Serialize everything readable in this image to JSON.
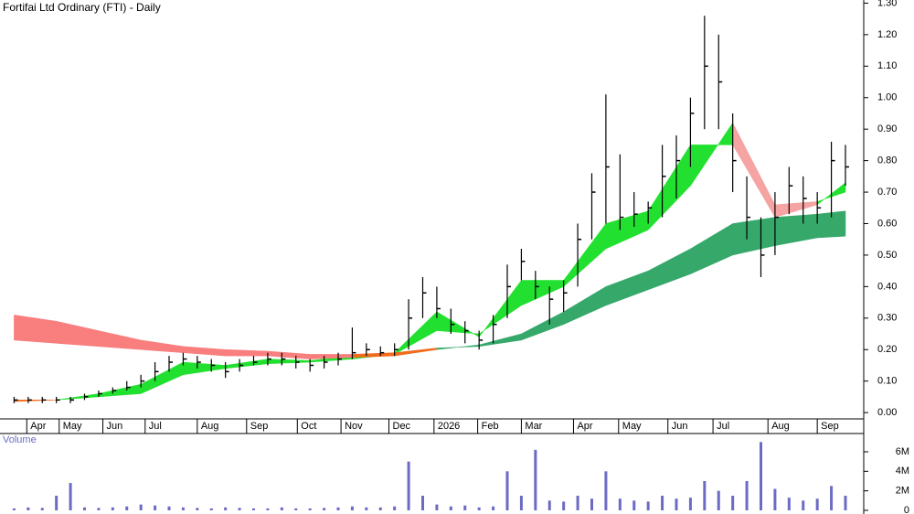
{
  "chart_data": {
    "type": "stock",
    "title": "Fortifai Ltd Ordinary (FTI) - Daily",
    "x": [
      1,
      2,
      3,
      4,
      5,
      6,
      7,
      8,
      9,
      10,
      11,
      12,
      13,
      14,
      15,
      16,
      17,
      18,
      19,
      20,
      21,
      22,
      23,
      24,
      25,
      26,
      27,
      28,
      29,
      30,
      31,
      32,
      33,
      34,
      35,
      36,
      37,
      38,
      39,
      40,
      41,
      42,
      43,
      44,
      45,
      46,
      47,
      48,
      49,
      50,
      51,
      52,
      53,
      54,
      55,
      56,
      57,
      58,
      59,
      60
    ],
    "xlim": [
      0,
      60
    ],
    "xticks": [
      {
        "value": 1.9,
        "label": "Apr"
      },
      {
        "value": 4.2,
        "label": "May"
      },
      {
        "value": 7.3,
        "label": "Jun"
      },
      {
        "value": 10.3,
        "label": "Jul"
      },
      {
        "value": 14,
        "label": "Aug"
      },
      {
        "value": 17.5,
        "label": "Sep"
      },
      {
        "value": 21.1,
        "label": "Oct"
      },
      {
        "value": 24.2,
        "label": "Nov"
      },
      {
        "value": 27.6,
        "label": "Dec"
      },
      {
        "value": 30.8,
        "label": "2026"
      },
      {
        "value": 33.9,
        "label": "Feb"
      },
      {
        "value": 37,
        "label": "Mar"
      },
      {
        "value": 40.7,
        "label": "Apr"
      },
      {
        "value": 43.9,
        "label": "May"
      },
      {
        "value": 47.4,
        "label": "Jun"
      },
      {
        "value": 50.6,
        "label": "Jul"
      },
      {
        "value": 54.5,
        "label": "Aug"
      },
      {
        "value": 58,
        "label": "Sep"
      }
    ],
    "close": [
      0.04,
      0.04,
      0.04,
      0.04,
      0.04,
      0.05,
      0.06,
      0.07,
      0.08,
      0.1,
      0.13,
      0.16,
      0.17,
      0.16,
      0.15,
      0.13,
      0.15,
      0.16,
      0.17,
      0.17,
      0.16,
      0.15,
      0.16,
      0.17,
      0.19,
      0.2,
      0.19,
      0.2,
      0.3,
      0.38,
      0.33,
      0.28,
      0.26,
      0.23,
      0.28,
      0.4,
      0.48,
      0.4,
      0.36,
      0.38,
      0.55,
      0.7,
      0.78,
      0.62,
      0.63,
      0.65,
      0.75,
      0.8,
      0.95,
      1.1,
      1.05,
      0.8,
      0.62,
      0.5,
      0.62,
      0.72,
      0.68,
      0.65,
      0.8,
      0.78
    ],
    "high": [
      0.05,
      0.05,
      0.05,
      0.05,
      0.05,
      0.06,
      0.07,
      0.08,
      0.1,
      0.12,
      0.16,
      0.18,
      0.19,
      0.18,
      0.17,
      0.16,
      0.17,
      0.18,
      0.19,
      0.19,
      0.18,
      0.17,
      0.18,
      0.19,
      0.27,
      0.22,
      0.21,
      0.22,
      0.36,
      0.43,
      0.4,
      0.33,
      0.29,
      0.26,
      0.31,
      0.47,
      0.52,
      0.45,
      0.4,
      0.42,
      0.6,
      0.76,
      1.01,
      0.82,
      0.7,
      0.67,
      0.85,
      0.88,
      1.0,
      1.26,
      1.2,
      0.95,
      0.75,
      0.62,
      0.7,
      0.78,
      0.75,
      0.7,
      0.86,
      0.85
    ],
    "low": [
      0.03,
      0.03,
      0.03,
      0.03,
      0.03,
      0.04,
      0.05,
      0.06,
      0.07,
      0.08,
      0.1,
      0.13,
      0.15,
      0.14,
      0.13,
      0.11,
      0.13,
      0.15,
      0.15,
      0.15,
      0.14,
      0.13,
      0.14,
      0.15,
      0.17,
      0.18,
      0.18,
      0.18,
      0.2,
      0.3,
      0.3,
      0.25,
      0.22,
      0.2,
      0.22,
      0.3,
      0.42,
      0.36,
      0.28,
      0.32,
      0.4,
      0.55,
      0.6,
      0.58,
      0.59,
      0.6,
      0.62,
      0.68,
      0.78,
      0.9,
      0.9,
      0.7,
      0.55,
      0.43,
      0.5,
      0.63,
      0.6,
      0.6,
      0.62,
      0.72
    ],
    "price_color": "#000000",
    "ylim": [
      -0.02,
      1.31
    ],
    "yticks": [
      {
        "value": 0,
        "label": "0.00"
      },
      {
        "value": 0.1,
        "label": "0.10"
      },
      {
        "value": 0.2,
        "label": "0.20"
      },
      {
        "value": 0.3,
        "label": "0.30"
      },
      {
        "value": 0.4,
        "label": "0.40"
      },
      {
        "value": 0.5,
        "label": "0.50"
      },
      {
        "value": 0.6,
        "label": "0.60"
      },
      {
        "value": 0.7,
        "label": "0.70"
      },
      {
        "value": 0.8,
        "label": "0.80"
      },
      {
        "value": 0.9,
        "label": "0.90"
      },
      {
        "value": 1.0,
        "label": "1.00"
      },
      {
        "value": 1.1,
        "label": "1.10"
      },
      {
        "value": 1.2,
        "label": "1.20"
      },
      {
        "value": 1.3,
        "label": "1.30"
      }
    ],
    "ribbons": [
      {
        "x": [
          1,
          4,
          7,
          10,
          13,
          16,
          19,
          22,
          25,
          28,
          31,
          34,
          37,
          40,
          43,
          46,
          49,
          52,
          55,
          58,
          60
        ],
        "fast": [
          0.035,
          0.04,
          0.06,
          0.09,
          0.16,
          0.15,
          0.17,
          0.165,
          0.18,
          0.19,
          0.32,
          0.24,
          0.42,
          0.42,
          0.6,
          0.64,
          0.85,
          0.85,
          0.62,
          0.66,
          0.73
        ],
        "slow": [
          0.04,
          0.04,
          0.05,
          0.06,
          0.12,
          0.14,
          0.155,
          0.16,
          0.17,
          0.185,
          0.26,
          0.25,
          0.34,
          0.4,
          0.52,
          0.58,
          0.72,
          0.92,
          0.66,
          0.67,
          0.7
        ],
        "up_color": "#22e030",
        "down_color": "#f26a1b",
        "weak_color": "#f5a3a3"
      },
      {
        "x": [
          1,
          4,
          7,
          10,
          13,
          16,
          19,
          22,
          25,
          28,
          31,
          34,
          37,
          40,
          43,
          46,
          49,
          52,
          55,
          58,
          60
        ],
        "fast": [
          0.23,
          0.22,
          0.21,
          0.2,
          0.19,
          0.18,
          0.18,
          0.17,
          0.175,
          0.18,
          0.2,
          0.215,
          0.25,
          0.32,
          0.4,
          0.45,
          0.52,
          0.6,
          0.62,
          0.63,
          0.64
        ],
        "slow": [
          0.31,
          0.29,
          0.26,
          0.23,
          0.21,
          0.2,
          0.195,
          0.185,
          0.185,
          0.19,
          0.205,
          0.21,
          0.23,
          0.28,
          0.34,
          0.39,
          0.44,
          0.5,
          0.53,
          0.555,
          0.56
        ],
        "up_color": "#35a86a",
        "down_color": "#f26a1b",
        "weak_color": "#f97e7e"
      }
    ],
    "volume": {
      "label": "Volume",
      "values": [
        200000,
        300000,
        250000,
        1500000,
        2800000,
        300000,
        250000,
        300000,
        400000,
        600000,
        500000,
        400000,
        300000,
        250000,
        200000,
        300000,
        250000,
        200000,
        200000,
        300000,
        200000,
        200000,
        250000,
        300000,
        400000,
        300000,
        300000,
        400000,
        5000000,
        1500000,
        600000,
        400000,
        500000,
        300000,
        400000,
        4000000,
        1500000,
        6200000,
        1000000,
        900000,
        1500000,
        1200000,
        4000000,
        1200000,
        1000000,
        900000,
        1500000,
        1200000,
        1300000,
        3000000,
        2000000,
        1500000,
        3000000,
        7000000,
        2200000,
        1300000,
        1000000,
        1200000,
        2500000,
        1500000
      ],
      "color": "#6b6bc4",
      "ylim": [
        0,
        7500000
      ],
      "yticks": [
        {
          "value": 0,
          "label": "0"
        },
        {
          "value": 2000000,
          "label": "2M"
        },
        {
          "value": 4000000,
          "label": "4M"
        },
        {
          "value": 6000000,
          "label": "6M"
        }
      ]
    }
  }
}
